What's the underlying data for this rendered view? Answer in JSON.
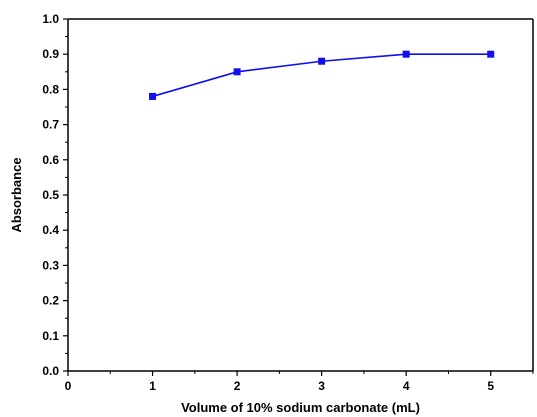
{
  "chart_data": {
    "type": "line",
    "title": "",
    "xlabel": "Volume of 10% sodium carbonate (mL)",
    "ylabel": "Absorbance",
    "xlim": [
      0,
      5.5
    ],
    "ylim": [
      0.0,
      1.0
    ],
    "xticks": [
      "0",
      "1",
      "2",
      "3",
      "4",
      "5"
    ],
    "yticks": [
      "0.0",
      "0.1",
      "0.2",
      "0.3",
      "0.4",
      "0.5",
      "0.6",
      "0.7",
      "0.8",
      "0.9",
      "1.0"
    ],
    "grid": false,
    "legend": "none",
    "series": [
      {
        "color": "#1010ee",
        "marker": "square",
        "x": [
          1,
          2,
          3,
          4,
          5
        ],
        "y": [
          0.78,
          0.85,
          0.88,
          0.9,
          0.9
        ]
      }
    ]
  }
}
